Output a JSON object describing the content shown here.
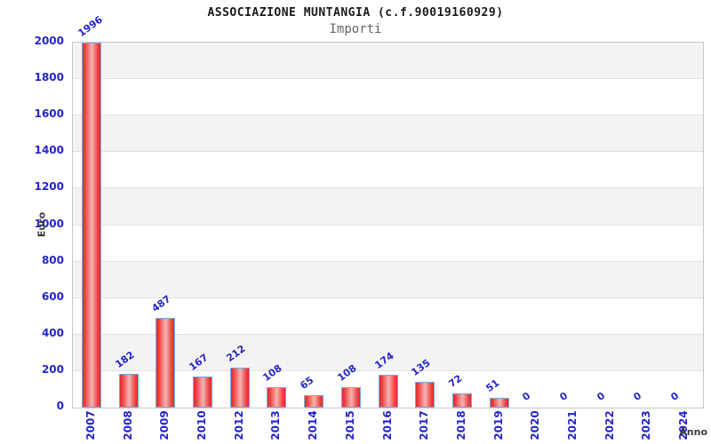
{
  "header": {
    "title": "ASSOCIAZIONE MUNTANGIA (c.f.90019160929)",
    "subtitle": "Importi"
  },
  "chart_data": {
    "type": "bar",
    "title": "ASSOCIAZIONE MUNTANGIA (c.f.90019160929)",
    "subtitle": "Importi",
    "xlabel": "Anno",
    "ylabel": "Euro",
    "categories": [
      "2007",
      "2008",
      "2009",
      "2010",
      "2012",
      "2013",
      "2014",
      "2015",
      "2016",
      "2017",
      "2018",
      "2019",
      "2020",
      "2021",
      "2022",
      "2023",
      "2024"
    ],
    "values": [
      1996,
      182,
      487,
      167,
      212,
      108,
      65,
      108,
      174,
      135,
      72,
      51,
      0,
      0,
      0,
      0,
      0
    ],
    "ylim": [
      0,
      2000
    ],
    "ytick_step": 200,
    "ytick_labels": [
      "0",
      "200",
      "400",
      "600",
      "800",
      "1000",
      "1200",
      "1400",
      "1600",
      "1800",
      "2000"
    ],
    "legend": "none",
    "grid": "horizontal lines every 200 with alternating shaded bands",
    "colors": {
      "bar_edge": "#e03030",
      "bar_center": "#f6b4b4",
      "bar_border": "#74a9e0",
      "label_blue": "#2525cc",
      "band_gray": "#f3f3f3",
      "grid_line": "#e1e1e1",
      "plot_border": "#c8c8c8",
      "axis_title": "#3a3a3a",
      "subtitle_gray": "#666666"
    }
  }
}
